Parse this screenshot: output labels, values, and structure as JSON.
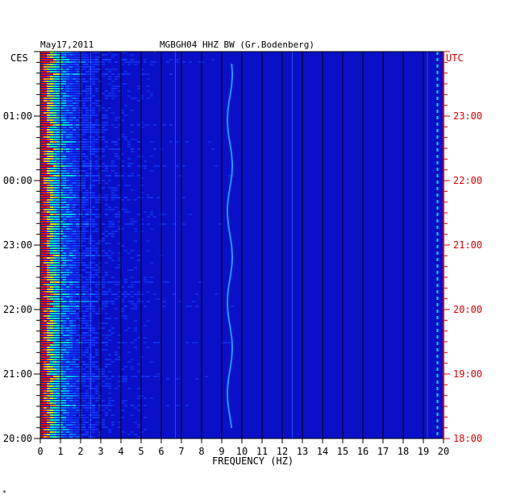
{
  "header": {
    "date": "May17,2011",
    "station_title": "MGBGH04 HHZ BW (Gr.Bodenberg)",
    "left_tz": "CES",
    "right_tz": "UTC"
  },
  "chart_data": {
    "type": "heatmap",
    "title": "MGBGH04 HHZ BW (Gr.Bodenberg)",
    "xlabel": "FREQUENCY (HZ)",
    "xlim": [
      0,
      20
    ],
    "x_ticks": [
      "0",
      "1",
      "2",
      "3",
      "4",
      "5",
      "6",
      "7",
      "8",
      "9",
      "10",
      "11",
      "12",
      "13",
      "14",
      "15",
      "16",
      "17",
      "18",
      "19",
      "20"
    ],
    "y_ticks_left": [
      "20:00",
      "21:00",
      "22:00",
      "23:00",
      "00:00",
      "01:00"
    ],
    "y_ticks_right": [
      "18:00",
      "19:00",
      "20:00",
      "21:00",
      "22:00",
      "23:00"
    ],
    "colors": {
      "background": "#0a10c8",
      "spectral_line": "#00e0ff",
      "right_axis": "#d40000"
    }
  },
  "footer": {
    "mark": "*"
  }
}
